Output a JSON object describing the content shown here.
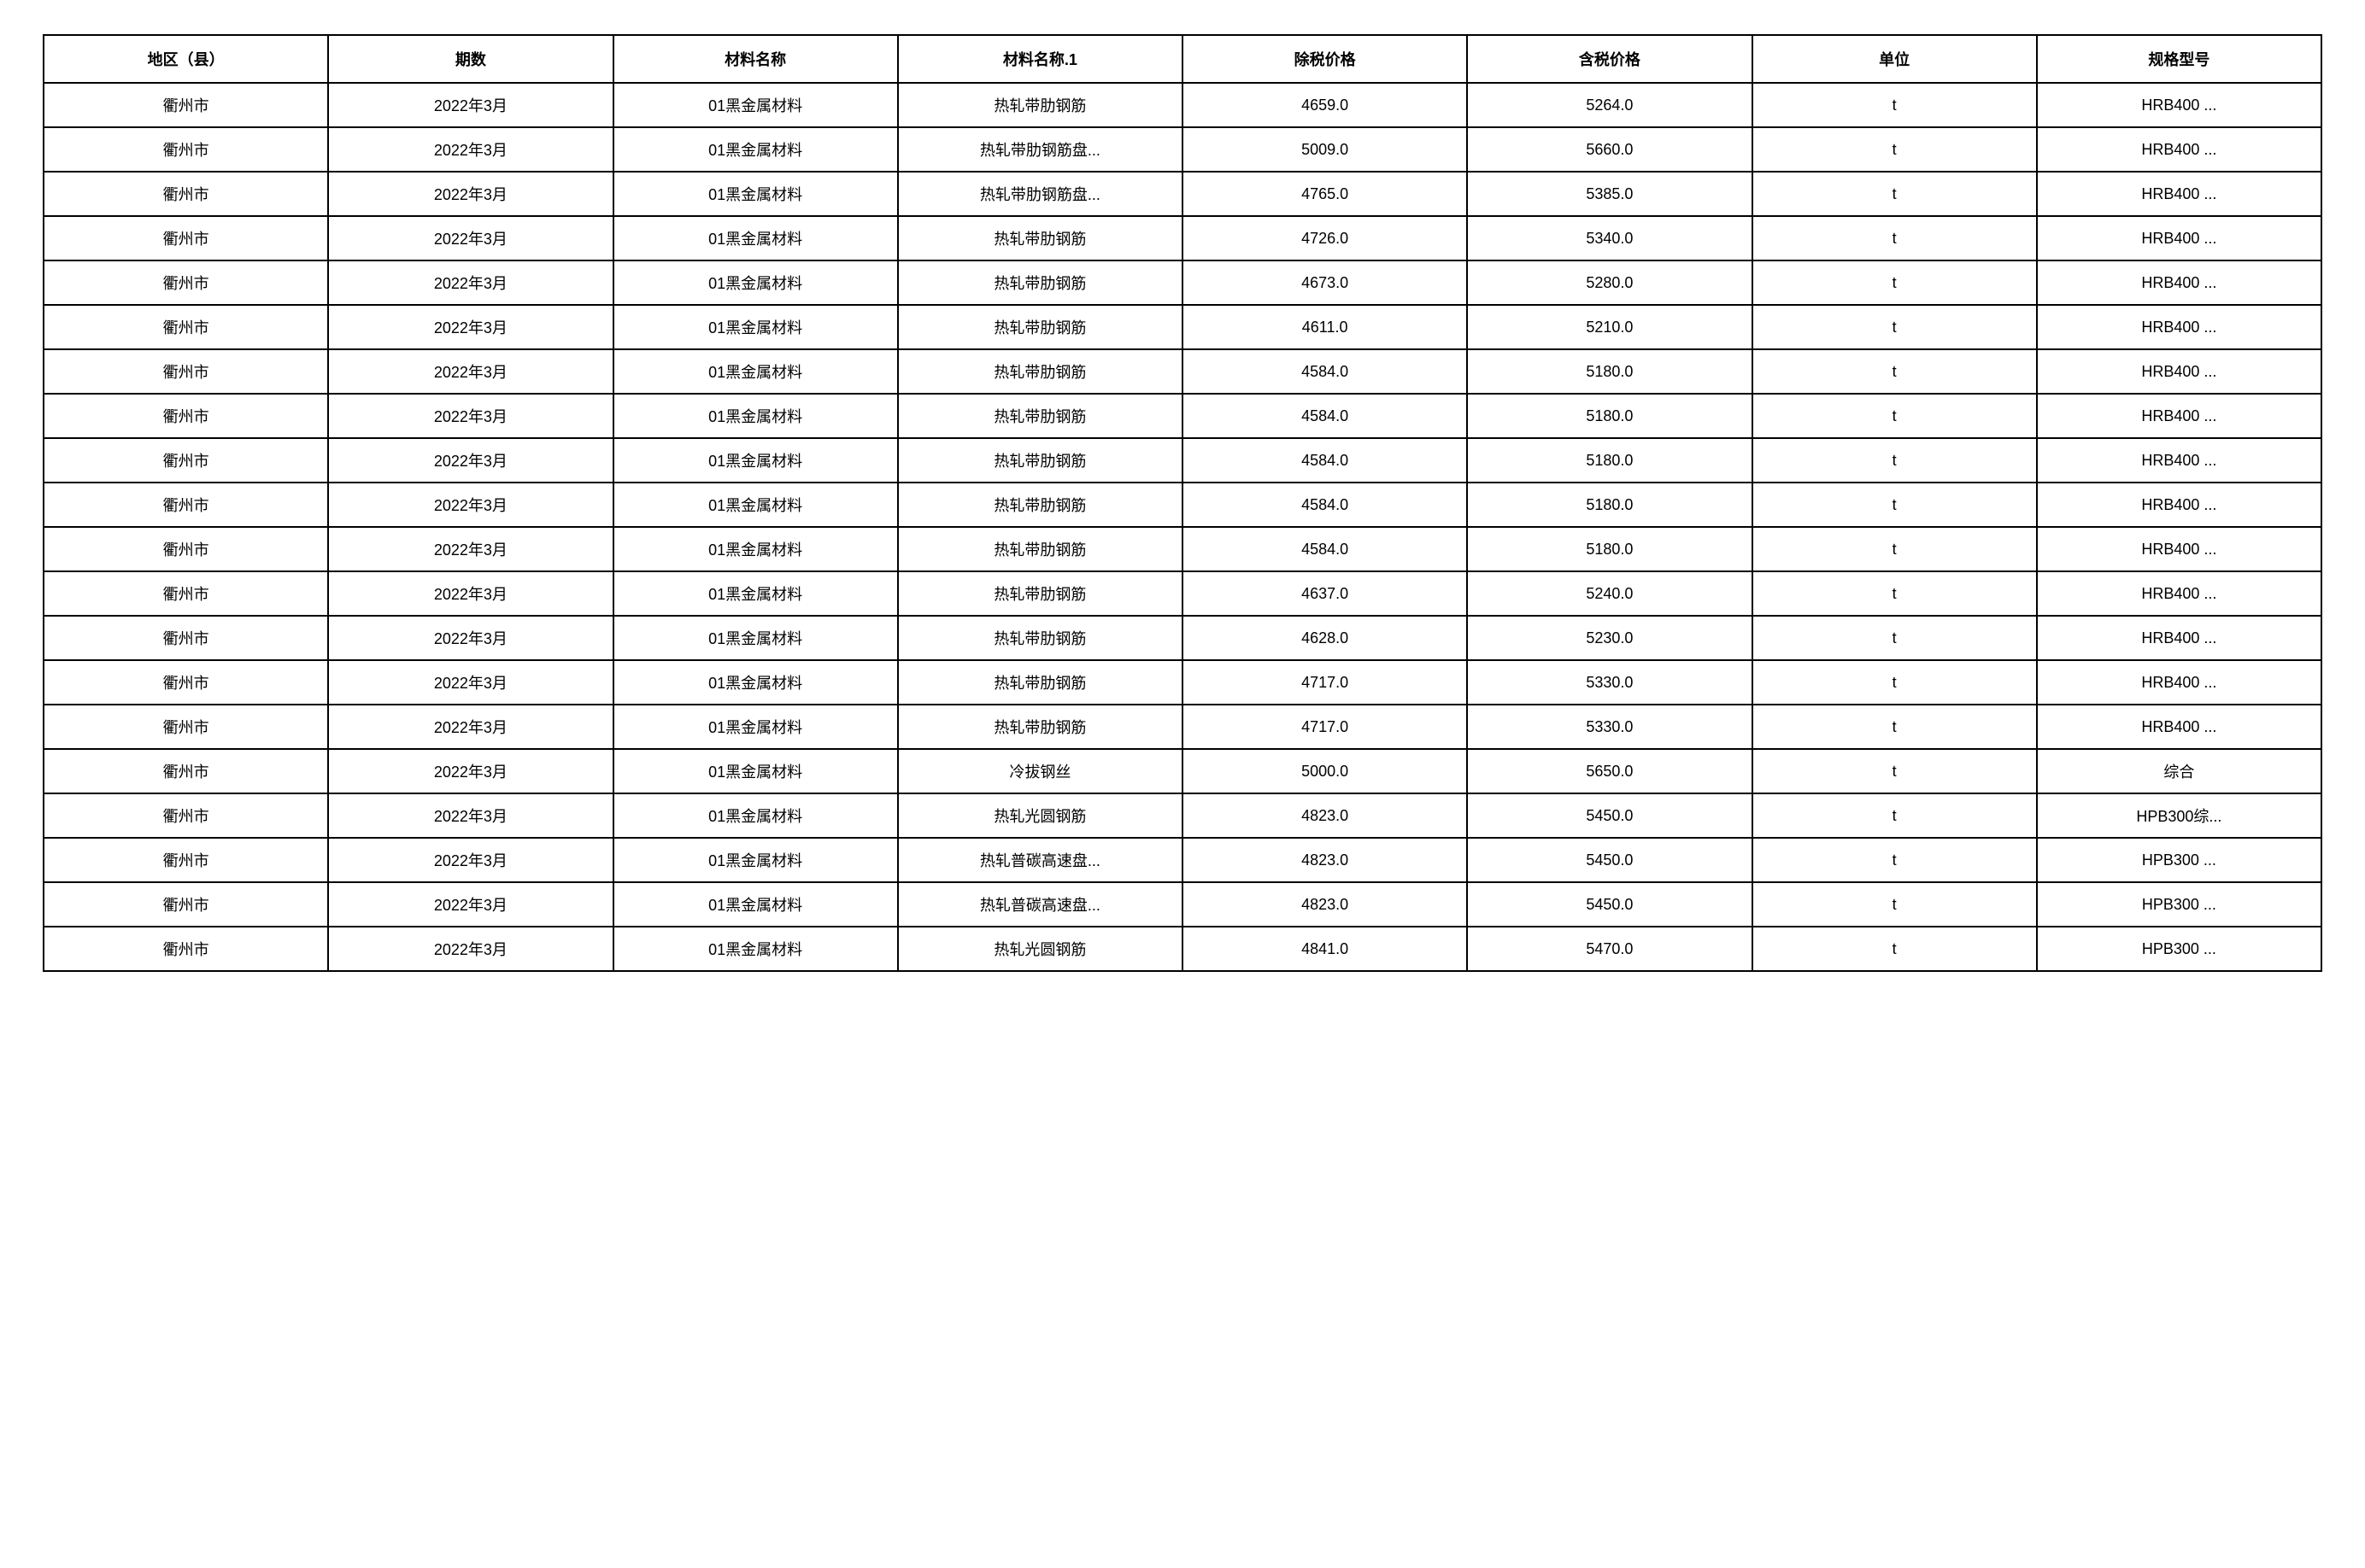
{
  "table": {
    "columns": [
      "地区（县）",
      "期数",
      "材料名称",
      "材料名称.1",
      "除税价格",
      "含税价格",
      "单位",
      "规格型号"
    ],
    "rows": [
      [
        "衢州市",
        "2022年3月",
        "01黑金属材料",
        "热轧带肋钢筋",
        "4659.0",
        "5264.0",
        "t",
        "HRB400 ..."
      ],
      [
        "衢州市",
        "2022年3月",
        "01黑金属材料",
        "热轧带肋钢筋盘...",
        "5009.0",
        "5660.0",
        "t",
        "HRB400 ..."
      ],
      [
        "衢州市",
        "2022年3月",
        "01黑金属材料",
        "热轧带肋钢筋盘...",
        "4765.0",
        "5385.0",
        "t",
        "HRB400 ..."
      ],
      [
        "衢州市",
        "2022年3月",
        "01黑金属材料",
        "热轧带肋钢筋",
        "4726.0",
        "5340.0",
        "t",
        "HRB400 ..."
      ],
      [
        "衢州市",
        "2022年3月",
        "01黑金属材料",
        "热轧带肋钢筋",
        "4673.0",
        "5280.0",
        "t",
        "HRB400 ..."
      ],
      [
        "衢州市",
        "2022年3月",
        "01黑金属材料",
        "热轧带肋钢筋",
        "4611.0",
        "5210.0",
        "t",
        "HRB400 ..."
      ],
      [
        "衢州市",
        "2022年3月",
        "01黑金属材料",
        "热轧带肋钢筋",
        "4584.0",
        "5180.0",
        "t",
        "HRB400 ..."
      ],
      [
        "衢州市",
        "2022年3月",
        "01黑金属材料",
        "热轧带肋钢筋",
        "4584.0",
        "5180.0",
        "t",
        "HRB400 ..."
      ],
      [
        "衢州市",
        "2022年3月",
        "01黑金属材料",
        "热轧带肋钢筋",
        "4584.0",
        "5180.0",
        "t",
        "HRB400 ..."
      ],
      [
        "衢州市",
        "2022年3月",
        "01黑金属材料",
        "热轧带肋钢筋",
        "4584.0",
        "5180.0",
        "t",
        "HRB400 ..."
      ],
      [
        "衢州市",
        "2022年3月",
        "01黑金属材料",
        "热轧带肋钢筋",
        "4584.0",
        "5180.0",
        "t",
        "HRB400 ..."
      ],
      [
        "衢州市",
        "2022年3月",
        "01黑金属材料",
        "热轧带肋钢筋",
        "4637.0",
        "5240.0",
        "t",
        "HRB400 ..."
      ],
      [
        "衢州市",
        "2022年3月",
        "01黑金属材料",
        "热轧带肋钢筋",
        "4628.0",
        "5230.0",
        "t",
        "HRB400 ..."
      ],
      [
        "衢州市",
        "2022年3月",
        "01黑金属材料",
        "热轧带肋钢筋",
        "4717.0",
        "5330.0",
        "t",
        "HRB400 ..."
      ],
      [
        "衢州市",
        "2022年3月",
        "01黑金属材料",
        "热轧带肋钢筋",
        "4717.0",
        "5330.0",
        "t",
        "HRB400 ..."
      ],
      [
        "衢州市",
        "2022年3月",
        "01黑金属材料",
        "冷拔钢丝",
        "5000.0",
        "5650.0",
        "t",
        "综合"
      ],
      [
        "衢州市",
        "2022年3月",
        "01黑金属材料",
        "热轧光圆钢筋",
        "4823.0",
        "5450.0",
        "t",
        "HPB300综..."
      ],
      [
        "衢州市",
        "2022年3月",
        "01黑金属材料",
        "热轧普碳高速盘...",
        "4823.0",
        "5450.0",
        "t",
        "HPB300 ..."
      ],
      [
        "衢州市",
        "2022年3月",
        "01黑金属材料",
        "热轧普碳高速盘...",
        "4823.0",
        "5450.0",
        "t",
        "HPB300 ..."
      ],
      [
        "衢州市",
        "2022年3月",
        "01黑金属材料",
        "热轧光圆钢筋",
        "4841.0",
        "5470.0",
        "t",
        "HPB300 ..."
      ]
    ],
    "border_color": "#000000",
    "background_color": "#ffffff",
    "header_fontsize": 18,
    "cell_fontsize": 18
  }
}
